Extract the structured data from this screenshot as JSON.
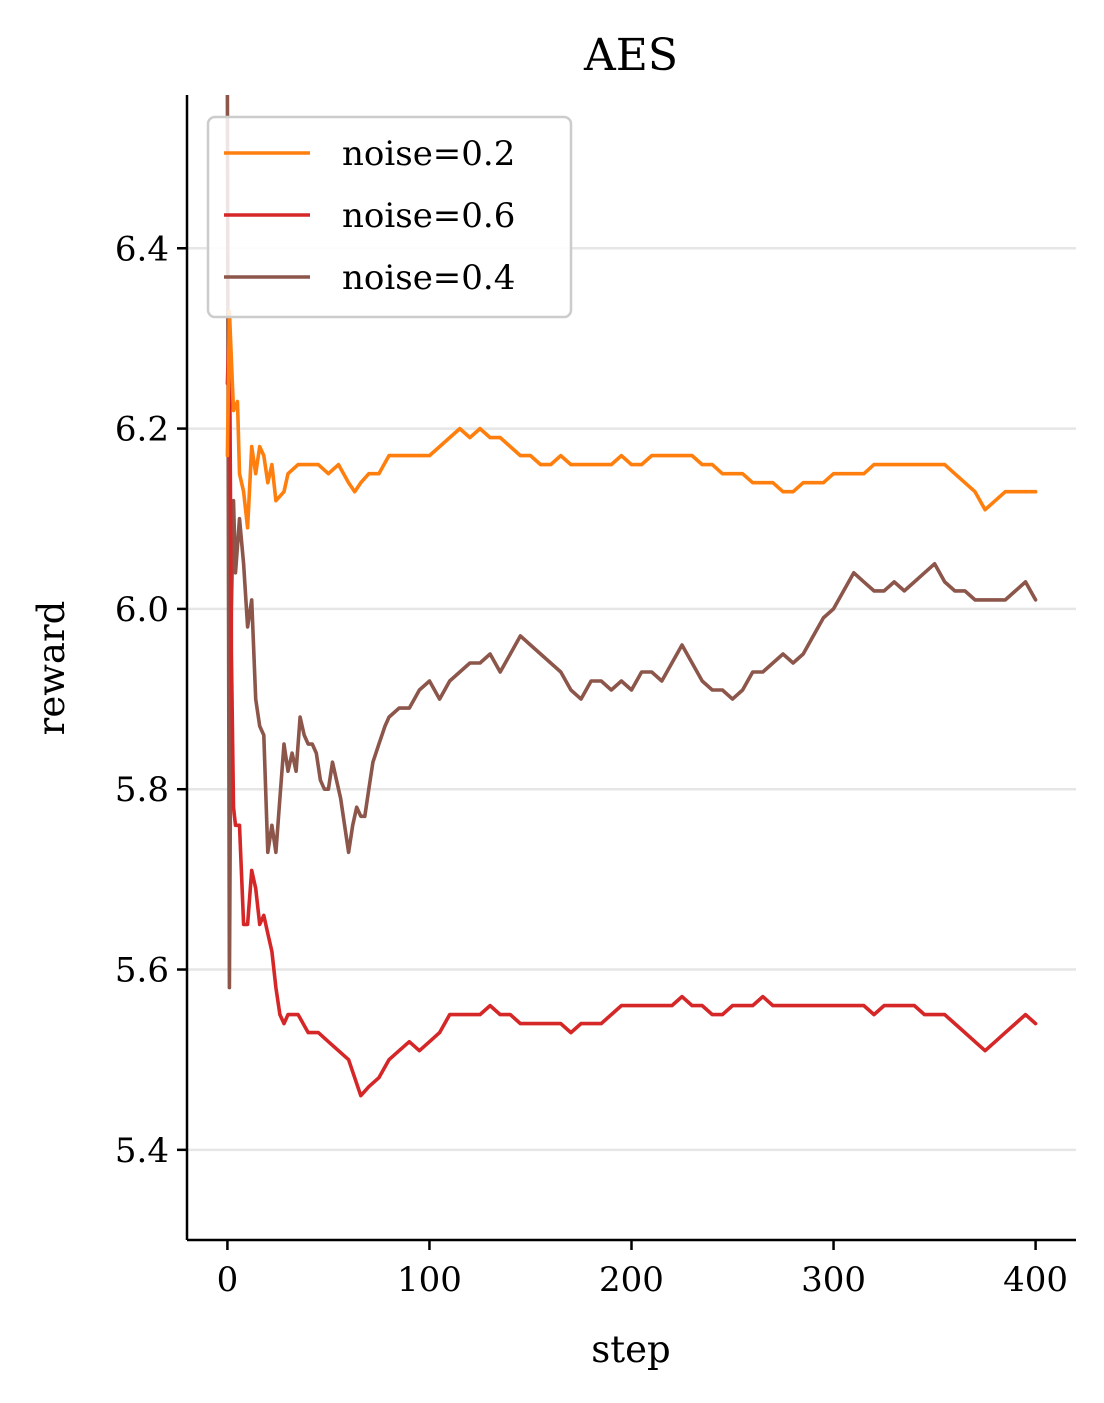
{
  "chart_data": {
    "type": "line",
    "title": "AES",
    "xlabel": "step",
    "ylabel": "reward",
    "xlim": [
      -20,
      420
    ],
    "ylim": [
      5.3,
      6.57
    ],
    "xticks": [
      0,
      100,
      200,
      300,
      400
    ],
    "xtick_labels": [
      "0",
      "100",
      "200",
      "300",
      "400"
    ],
    "yticks": [
      5.4,
      5.6,
      5.8,
      6.0,
      6.2,
      6.4
    ],
    "ytick_labels": [
      "5.4",
      "5.6",
      "5.8",
      "6.0",
      "6.2",
      "6.4"
    ],
    "grid": "horizontal",
    "legend_position": "top-left",
    "series": [
      {
        "name": "noise=0.2",
        "color": "#ff7f0e",
        "points": [
          [
            0,
            6.17
          ],
          [
            1,
            6.33
          ],
          [
            3,
            6.22
          ],
          [
            5,
            6.23
          ],
          [
            6,
            6.15
          ],
          [
            8,
            6.13
          ],
          [
            10,
            6.09
          ],
          [
            12,
            6.18
          ],
          [
            14,
            6.15
          ],
          [
            16,
            6.18
          ],
          [
            18,
            6.17
          ],
          [
            20,
            6.14
          ],
          [
            22,
            6.16
          ],
          [
            24,
            6.12
          ],
          [
            28,
            6.13
          ],
          [
            30,
            6.15
          ],
          [
            35,
            6.16
          ],
          [
            40,
            6.16
          ],
          [
            45,
            6.16
          ],
          [
            50,
            6.15
          ],
          [
            55,
            6.16
          ],
          [
            60,
            6.14
          ],
          [
            63,
            6.13
          ],
          [
            66,
            6.14
          ],
          [
            70,
            6.15
          ],
          [
            75,
            6.15
          ],
          [
            80,
            6.17
          ],
          [
            85,
            6.17
          ],
          [
            90,
            6.17
          ],
          [
            95,
            6.17
          ],
          [
            100,
            6.17
          ],
          [
            105,
            6.18
          ],
          [
            110,
            6.19
          ],
          [
            115,
            6.2
          ],
          [
            120,
            6.19
          ],
          [
            125,
            6.2
          ],
          [
            130,
            6.19
          ],
          [
            135,
            6.19
          ],
          [
            140,
            6.18
          ],
          [
            145,
            6.17
          ],
          [
            150,
            6.17
          ],
          [
            155,
            6.16
          ],
          [
            160,
            6.16
          ],
          [
            165,
            6.17
          ],
          [
            170,
            6.16
          ],
          [
            175,
            6.16
          ],
          [
            180,
            6.16
          ],
          [
            185,
            6.16
          ],
          [
            190,
            6.16
          ],
          [
            195,
            6.17
          ],
          [
            200,
            6.16
          ],
          [
            205,
            6.16
          ],
          [
            210,
            6.17
          ],
          [
            215,
            6.17
          ],
          [
            220,
            6.17
          ],
          [
            225,
            6.17
          ],
          [
            230,
            6.17
          ],
          [
            235,
            6.16
          ],
          [
            240,
            6.16
          ],
          [
            245,
            6.15
          ],
          [
            250,
            6.15
          ],
          [
            255,
            6.15
          ],
          [
            260,
            6.14
          ],
          [
            265,
            6.14
          ],
          [
            270,
            6.14
          ],
          [
            275,
            6.13
          ],
          [
            280,
            6.13
          ],
          [
            285,
            6.14
          ],
          [
            290,
            6.14
          ],
          [
            295,
            6.14
          ],
          [
            300,
            6.15
          ],
          [
            305,
            6.15
          ],
          [
            310,
            6.15
          ],
          [
            315,
            6.15
          ],
          [
            320,
            6.16
          ],
          [
            325,
            6.16
          ],
          [
            330,
            6.16
          ],
          [
            335,
            6.16
          ],
          [
            340,
            6.16
          ],
          [
            345,
            6.16
          ],
          [
            350,
            6.16
          ],
          [
            355,
            6.16
          ],
          [
            360,
            6.15
          ],
          [
            365,
            6.14
          ],
          [
            370,
            6.13
          ],
          [
            375,
            6.11
          ],
          [
            380,
            6.12
          ],
          [
            385,
            6.13
          ],
          [
            390,
            6.13
          ],
          [
            395,
            6.13
          ],
          [
            400,
            6.13
          ]
        ]
      },
      {
        "name": "noise=0.6",
        "color": "#d62728",
        "points": [
          [
            0,
            6.25
          ],
          [
            1,
            6.32
          ],
          [
            2,
            5.95
          ],
          [
            3,
            5.78
          ],
          [
            4,
            5.76
          ],
          [
            6,
            5.76
          ],
          [
            8,
            5.65
          ],
          [
            10,
            5.65
          ],
          [
            12,
            5.71
          ],
          [
            14,
            5.69
          ],
          [
            16,
            5.65
          ],
          [
            18,
            5.66
          ],
          [
            20,
            5.64
          ],
          [
            22,
            5.62
          ],
          [
            24,
            5.58
          ],
          [
            26,
            5.55
          ],
          [
            28,
            5.54
          ],
          [
            30,
            5.55
          ],
          [
            35,
            5.55
          ],
          [
            40,
            5.53
          ],
          [
            45,
            5.53
          ],
          [
            50,
            5.52
          ],
          [
            55,
            5.51
          ],
          [
            60,
            5.5
          ],
          [
            63,
            5.48
          ],
          [
            66,
            5.46
          ],
          [
            70,
            5.47
          ],
          [
            75,
            5.48
          ],
          [
            80,
            5.5
          ],
          [
            85,
            5.51
          ],
          [
            90,
            5.52
          ],
          [
            95,
            5.51
          ],
          [
            100,
            5.52
          ],
          [
            105,
            5.53
          ],
          [
            110,
            5.55
          ],
          [
            115,
            5.55
          ],
          [
            120,
            5.55
          ],
          [
            125,
            5.55
          ],
          [
            130,
            5.56
          ],
          [
            135,
            5.55
          ],
          [
            140,
            5.55
          ],
          [
            145,
            5.54
          ],
          [
            150,
            5.54
          ],
          [
            155,
            5.54
          ],
          [
            160,
            5.54
          ],
          [
            165,
            5.54
          ],
          [
            170,
            5.53
          ],
          [
            175,
            5.54
          ],
          [
            180,
            5.54
          ],
          [
            185,
            5.54
          ],
          [
            190,
            5.55
          ],
          [
            195,
            5.56
          ],
          [
            200,
            5.56
          ],
          [
            205,
            5.56
          ],
          [
            210,
            5.56
          ],
          [
            215,
            5.56
          ],
          [
            220,
            5.56
          ],
          [
            225,
            5.57
          ],
          [
            230,
            5.56
          ],
          [
            235,
            5.56
          ],
          [
            240,
            5.55
          ],
          [
            245,
            5.55
          ],
          [
            250,
            5.56
          ],
          [
            255,
            5.56
          ],
          [
            260,
            5.56
          ],
          [
            265,
            5.57
          ],
          [
            270,
            5.56
          ],
          [
            275,
            5.56
          ],
          [
            280,
            5.56
          ],
          [
            285,
            5.56
          ],
          [
            290,
            5.56
          ],
          [
            295,
            5.56
          ],
          [
            300,
            5.56
          ],
          [
            305,
            5.56
          ],
          [
            310,
            5.56
          ],
          [
            315,
            5.56
          ],
          [
            320,
            5.55
          ],
          [
            325,
            5.56
          ],
          [
            330,
            5.56
          ],
          [
            335,
            5.56
          ],
          [
            340,
            5.56
          ],
          [
            345,
            5.55
          ],
          [
            350,
            5.55
          ],
          [
            355,
            5.55
          ],
          [
            360,
            5.54
          ],
          [
            365,
            5.53
          ],
          [
            370,
            5.52
          ],
          [
            375,
            5.51
          ],
          [
            380,
            5.52
          ],
          [
            385,
            5.53
          ],
          [
            390,
            5.54
          ],
          [
            395,
            5.55
          ],
          [
            400,
            5.54
          ]
        ]
      },
      {
        "name": "noise=0.4",
        "color": "#8c564b",
        "points": [
          [
            0,
            6.57
          ],
          [
            1,
            5.58
          ],
          [
            2,
            6.0
          ],
          [
            3,
            6.12
          ],
          [
            4,
            6.04
          ],
          [
            6,
            6.1
          ],
          [
            8,
            6.05
          ],
          [
            10,
            5.98
          ],
          [
            12,
            6.01
          ],
          [
            14,
            5.9
          ],
          [
            16,
            5.87
          ],
          [
            18,
            5.86
          ],
          [
            20,
            5.73
          ],
          [
            22,
            5.76
          ],
          [
            24,
            5.73
          ],
          [
            26,
            5.79
          ],
          [
            28,
            5.85
          ],
          [
            30,
            5.82
          ],
          [
            32,
            5.84
          ],
          [
            34,
            5.82
          ],
          [
            36,
            5.88
          ],
          [
            38,
            5.86
          ],
          [
            40,
            5.85
          ],
          [
            42,
            5.85
          ],
          [
            44,
            5.84
          ],
          [
            46,
            5.81
          ],
          [
            48,
            5.8
          ],
          [
            50,
            5.8
          ],
          [
            52,
            5.83
          ],
          [
            54,
            5.81
          ],
          [
            56,
            5.79
          ],
          [
            58,
            5.76
          ],
          [
            60,
            5.73
          ],
          [
            62,
            5.76
          ],
          [
            64,
            5.78
          ],
          [
            66,
            5.77
          ],
          [
            68,
            5.77
          ],
          [
            70,
            5.8
          ],
          [
            72,
            5.83
          ],
          [
            75,
            5.85
          ],
          [
            78,
            5.87
          ],
          [
            80,
            5.88
          ],
          [
            85,
            5.89
          ],
          [
            90,
            5.89
          ],
          [
            95,
            5.91
          ],
          [
            100,
            5.92
          ],
          [
            105,
            5.9
          ],
          [
            110,
            5.92
          ],
          [
            115,
            5.93
          ],
          [
            120,
            5.94
          ],
          [
            125,
            5.94
          ],
          [
            130,
            5.95
          ],
          [
            135,
            5.93
          ],
          [
            140,
            5.95
          ],
          [
            145,
            5.97
          ],
          [
            150,
            5.96
          ],
          [
            155,
            5.95
          ],
          [
            160,
            5.94
          ],
          [
            165,
            5.93
          ],
          [
            170,
            5.91
          ],
          [
            175,
            5.9
          ],
          [
            180,
            5.92
          ],
          [
            185,
            5.92
          ],
          [
            190,
            5.91
          ],
          [
            195,
            5.92
          ],
          [
            200,
            5.91
          ],
          [
            205,
            5.93
          ],
          [
            210,
            5.93
          ],
          [
            215,
            5.92
          ],
          [
            220,
            5.94
          ],
          [
            225,
            5.96
          ],
          [
            230,
            5.94
          ],
          [
            235,
            5.92
          ],
          [
            240,
            5.91
          ],
          [
            245,
            5.91
          ],
          [
            250,
            5.9
          ],
          [
            255,
            5.91
          ],
          [
            260,
            5.93
          ],
          [
            265,
            5.93
          ],
          [
            270,
            5.94
          ],
          [
            275,
            5.95
          ],
          [
            280,
            5.94
          ],
          [
            285,
            5.95
          ],
          [
            290,
            5.97
          ],
          [
            295,
            5.99
          ],
          [
            300,
            6.0
          ],
          [
            305,
            6.02
          ],
          [
            310,
            6.04
          ],
          [
            315,
            6.03
          ],
          [
            320,
            6.02
          ],
          [
            325,
            6.02
          ],
          [
            330,
            6.03
          ],
          [
            335,
            6.02
          ],
          [
            340,
            6.03
          ],
          [
            345,
            6.04
          ],
          [
            350,
            6.05
          ],
          [
            355,
            6.03
          ],
          [
            360,
            6.02
          ],
          [
            365,
            6.02
          ],
          [
            370,
            6.01
          ],
          [
            375,
            6.01
          ],
          [
            380,
            6.01
          ],
          [
            385,
            6.01
          ],
          [
            390,
            6.02
          ],
          [
            395,
            6.03
          ],
          [
            400,
            6.01
          ]
        ]
      }
    ]
  }
}
